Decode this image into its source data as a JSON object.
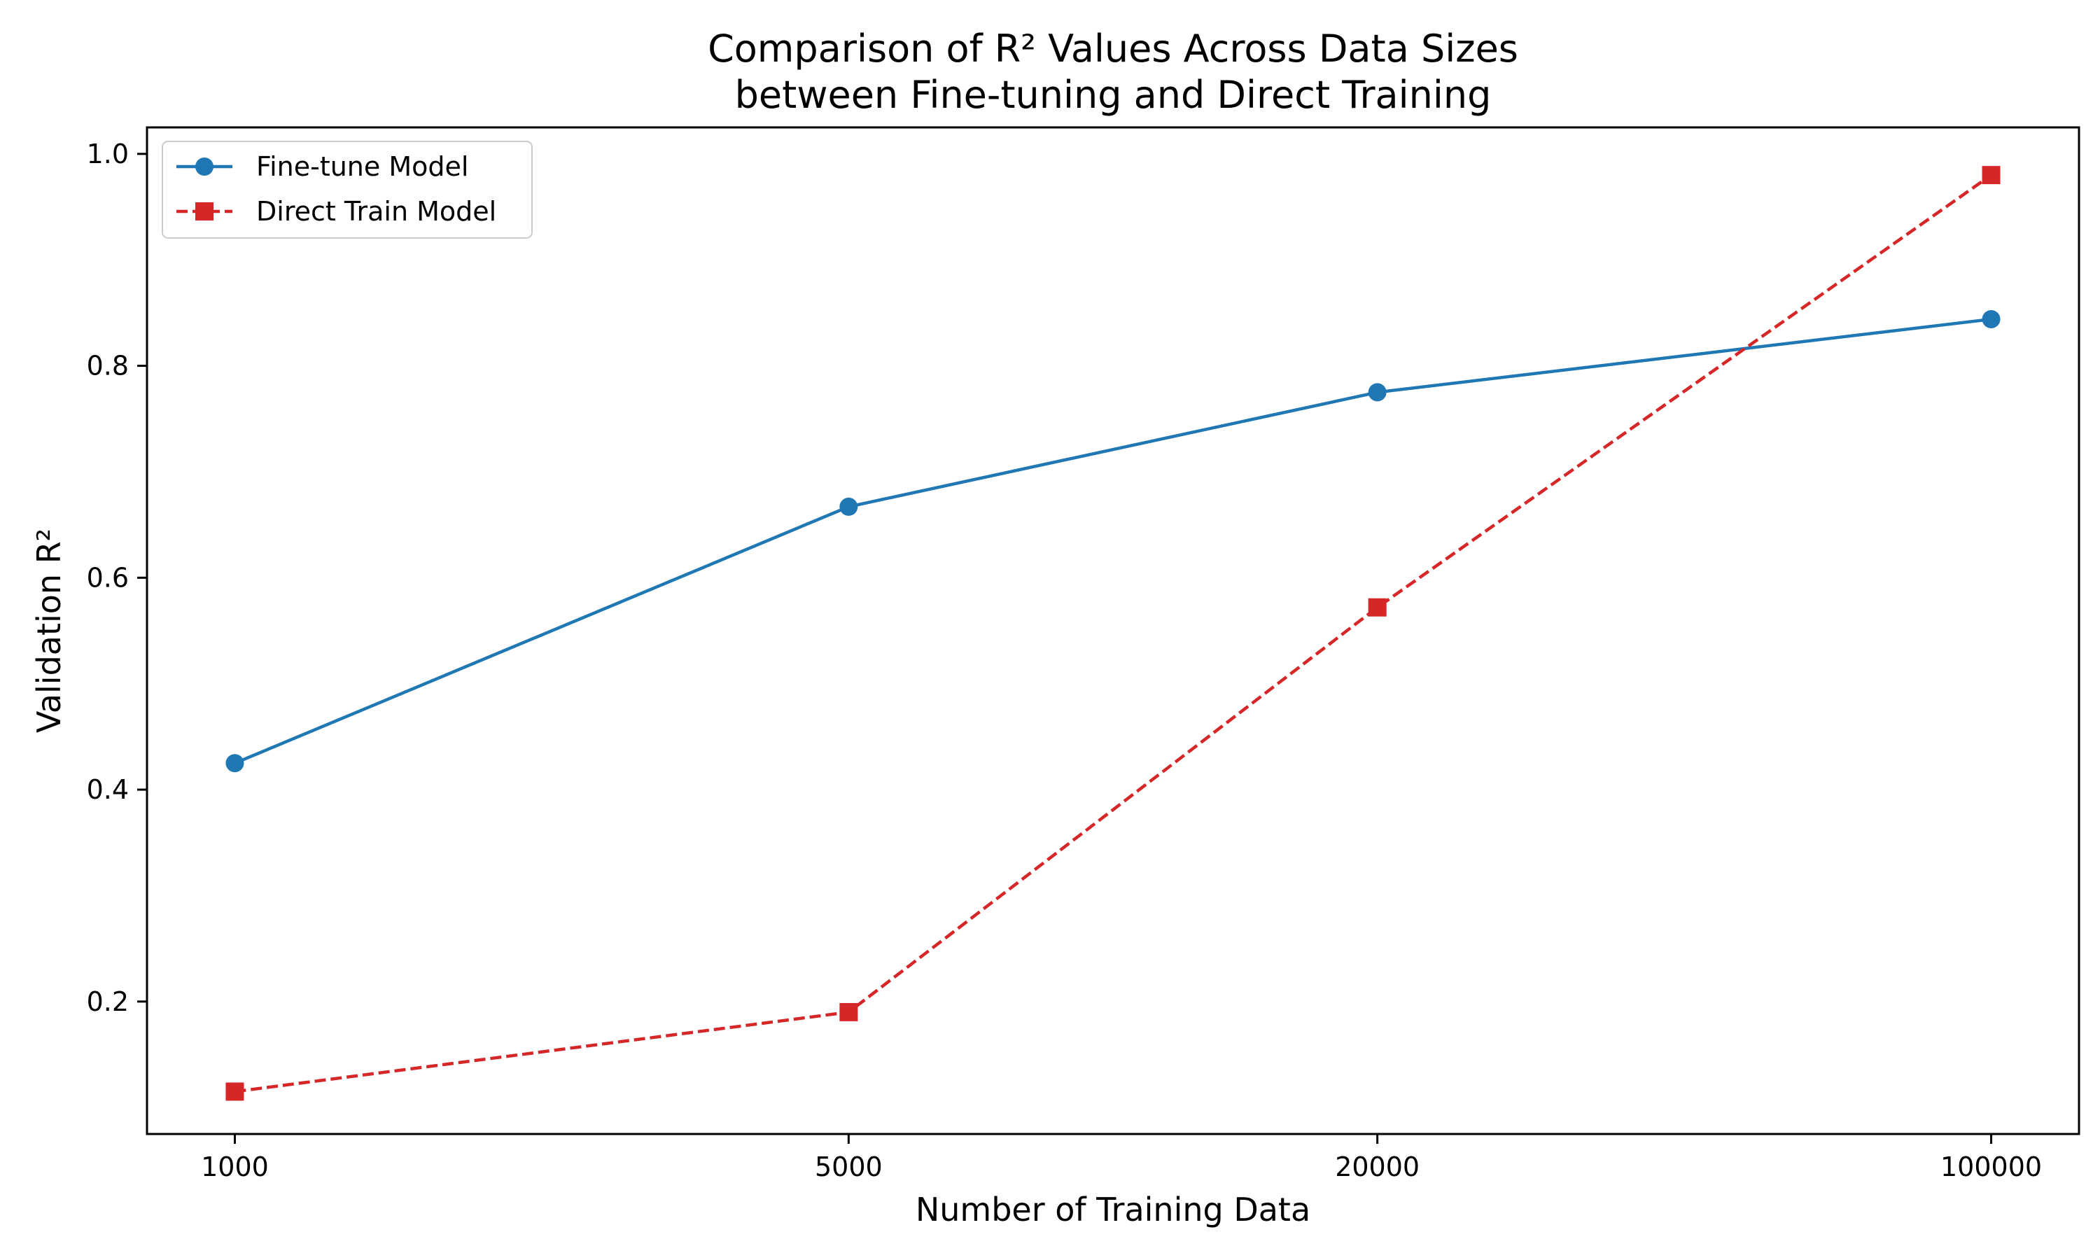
{
  "chart_data": {
    "type": "line",
    "title": "Comparison of R² Values Across Data Sizes",
    "subtitle": "between Fine-tuning and Direct Training",
    "xlabel": "Number of Training Data",
    "ylabel": "Validation R²",
    "x_scale": "categorical (evenly spaced by log of value)",
    "categories": [
      "1000",
      "5000",
      "20000",
      "100000"
    ],
    "x": [
      1000,
      5000,
      20000,
      100000
    ],
    "ylim": [
      0.075,
      1.025
    ],
    "yticks": [
      0.2,
      0.4,
      0.6,
      0.8,
      1.0
    ],
    "ytick_labels": [
      "0.2",
      "0.4",
      "0.6",
      "0.8",
      "1.0"
    ],
    "grid": false,
    "legend_position": "upper-left",
    "series": [
      {
        "name": "Fine-tune Model",
        "values": [
          0.425,
          0.667,
          0.775,
          0.844
        ],
        "color": "#1f77b4",
        "line_style": "solid",
        "marker": "circle"
      },
      {
        "name": "Direct Train Model",
        "values": [
          0.115,
          0.19,
          0.572,
          0.98
        ],
        "color": "#d62728",
        "line_style": "dashed",
        "marker": "square"
      }
    ]
  }
}
